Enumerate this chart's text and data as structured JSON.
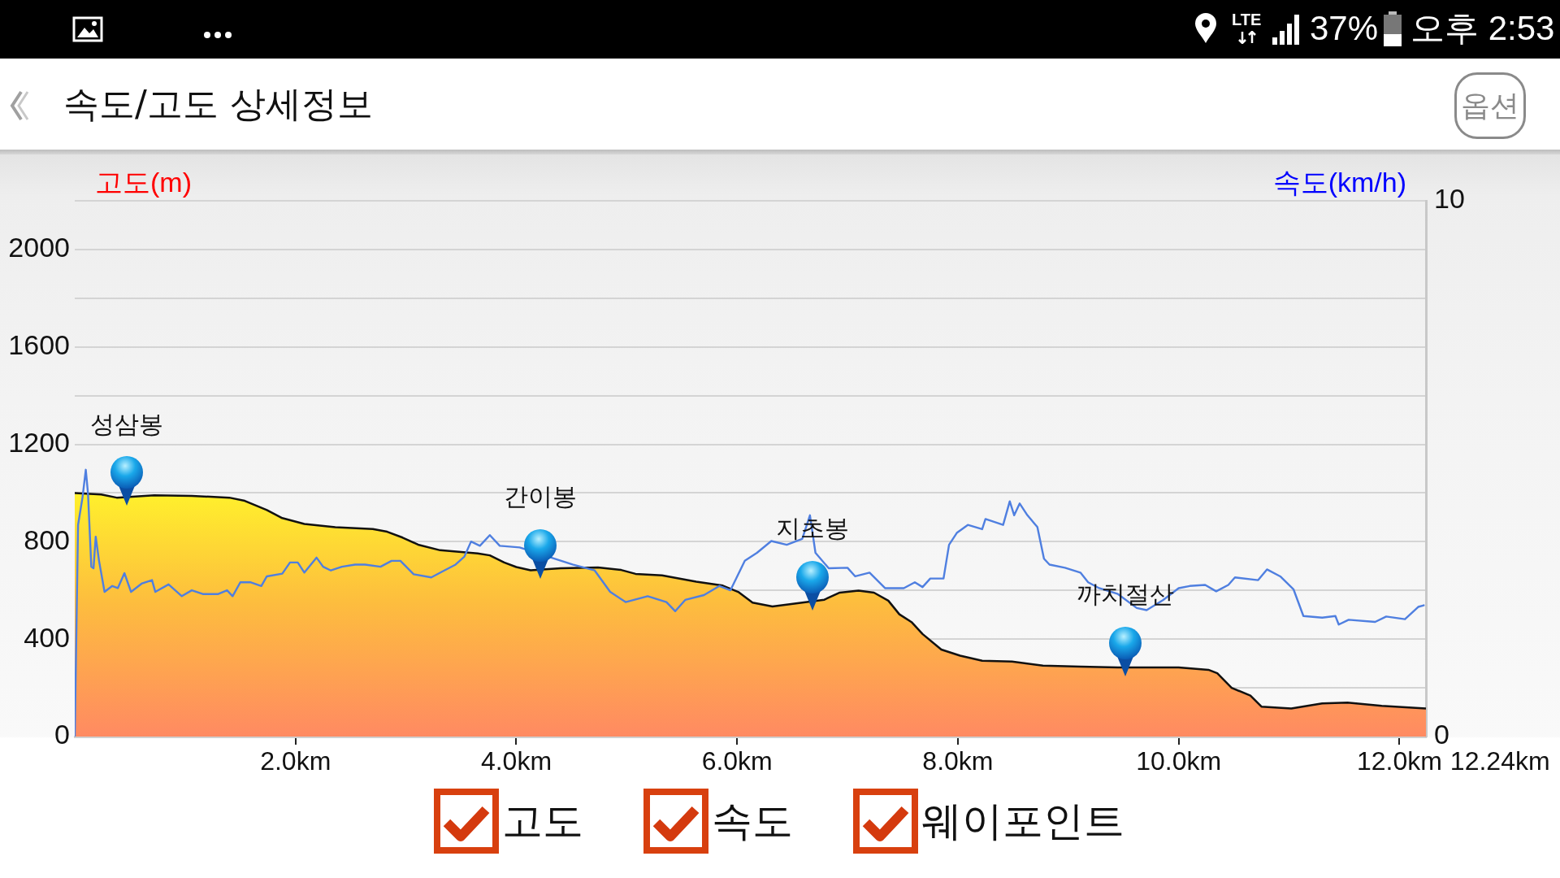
{
  "chart_data": {
    "type": "area",
    "title": "속도/고도 상세정보",
    "ylabel": "고도(m)",
    "y2label": "속도(km/h)",
    "xlim": [
      0,
      12.24
    ],
    "xticks": [
      {
        "value": 2,
        "label": "2.0km"
      },
      {
        "value": 4,
        "label": "4.0km"
      },
      {
        "value": 6,
        "label": "6.0km"
      },
      {
        "value": 8,
        "label": "8.0km"
      },
      {
        "value": 10,
        "label": "10.0km"
      },
      {
        "value": 12,
        "label": "12.0km"
      }
    ],
    "ylim": [
      0,
      2200
    ],
    "yticks": [
      0,
      {
        "value": 200,
        "label": null
      },
      400,
      {
        "value": 600,
        "label": null
      },
      800,
      {
        "value": 1000,
        "label": null
      },
      1200,
      {
        "value": 1400,
        "label": null
      },
      1600,
      {
        "value": 1800,
        "label": null
      },
      2000,
      {
        "value": 2200,
        "label": null
      }
    ],
    "y2lim": [
      0,
      10
    ],
    "y2ticks": [
      0,
      10
    ],
    "grid": "y",
    "marker": "none",
    "line_style": "solid",
    "series": [
      {
        "color": "#fdbd3e",
        "x": [
          0,
          0.24,
          0.38,
          0.72,
          1.06,
          1.4,
          1.54,
          1.74,
          1.88,
          2.08,
          2.36,
          2.7,
          2.83,
          2.97,
          3.11,
          3.31,
          3.65,
          3.76,
          3.89,
          4.0,
          4.13,
          4.4,
          4.74,
          4.95,
          5.08,
          5.32,
          5.63,
          5.87,
          6.01,
          6.14,
          6.32,
          6.79,
          6.93,
          7.1,
          7.24,
          7.37,
          7.47,
          7.58,
          7.68,
          7.85,
          8.02,
          8.22,
          8.49,
          8.77,
          9.11,
          9.45,
          10.0,
          10.27,
          10.35,
          10.48,
          10.65,
          10.75,
          11.02,
          11.3,
          11.53,
          11.84,
          12.24
        ],
        "values": [
          1000,
          994,
          981,
          991,
          988,
          981,
          968,
          930,
          897,
          873,
          860,
          852,
          841,
          817,
          788,
          765,
          752,
          744,
          715,
          696,
          683,
          691,
          694,
          684,
          668,
          662,
          636,
          620,
          594,
          550,
          534,
          562,
          591,
          599,
          591,
          558,
          502,
          470,
          421,
          357,
          332,
          311,
          308,
          291,
          287,
          284,
          284,
          274,
          260,
          200,
          168,
          123,
          115,
          136,
          139,
          126,
          115
        ]
      },
      {
        "type": "line",
        "axis": "y2",
        "color": "#4f7fe0",
        "x": [
          0,
          0.03,
          0.07,
          0.1,
          0.12,
          0.15,
          0.17,
          0.19,
          0.22,
          0.27,
          0.34,
          0.39,
          0.45,
          0.51,
          0.61,
          0.7,
          0.73,
          0.85,
          0.97,
          1.06,
          1.16,
          1.3,
          1.38,
          1.43,
          1.5,
          1.59,
          1.69,
          1.74,
          1.88,
          1.95,
          2.02,
          2.08,
          2.19,
          2.25,
          2.32,
          2.42,
          2.54,
          2.63,
          2.77,
          2.87,
          2.95,
          3.07,
          3.23,
          3.33,
          3.45,
          3.53,
          3.59,
          3.67,
          3.76,
          3.85,
          4.03,
          4.51,
          4.71,
          4.85,
          4.99,
          5.19,
          5.36,
          5.44,
          5.53,
          5.7,
          5.84,
          5.94,
          6.07,
          6.18,
          6.31,
          6.45,
          6.59,
          6.66,
          6.71,
          6.83,
          7.0,
          7.07,
          7.2,
          7.34,
          7.51,
          7.61,
          7.68,
          7.75,
          7.87,
          7.92,
          7.99,
          8.09,
          8.22,
          8.25,
          8.41,
          8.47,
          8.51,
          8.56,
          8.63,
          8.72,
          8.78,
          8.83,
          8.97,
          9.11,
          9.18,
          9.28,
          9.45,
          9.62,
          9.71,
          9.86,
          10.0,
          10.1,
          10.24,
          10.34,
          10.45,
          10.51,
          10.72,
          10.8,
          10.92,
          11.04,
          11.13,
          11.3,
          11.42,
          11.45,
          11.54,
          11.78,
          11.88,
          12.05,
          12.17,
          12.22
        ],
        "values": [
          0,
          3.95,
          4.46,
          4.98,
          4.54,
          3.17,
          3.14,
          3.73,
          3.28,
          2.7,
          2.81,
          2.77,
          3.05,
          2.7,
          2.86,
          2.92,
          2.7,
          2.84,
          2.62,
          2.73,
          2.66,
          2.66,
          2.73,
          2.62,
          2.88,
          2.88,
          2.81,
          2.99,
          3.04,
          3.25,
          3.25,
          3.06,
          3.34,
          3.17,
          3.1,
          3.17,
          3.21,
          3.21,
          3.17,
          3.28,
          3.28,
          3.03,
          2.97,
          3.08,
          3.21,
          3.36,
          3.64,
          3.56,
          3.76,
          3.56,
          3.53,
          3.21,
          3.1,
          2.7,
          2.51,
          2.62,
          2.51,
          2.34,
          2.55,
          2.64,
          2.81,
          2.73,
          3.28,
          3.43,
          3.65,
          3.58,
          3.69,
          4.13,
          3.43,
          3.14,
          3.15,
          2.99,
          3.06,
          2.77,
          2.77,
          2.88,
          2.79,
          2.95,
          2.95,
          3.58,
          3.8,
          3.95,
          3.87,
          4.06,
          3.95,
          4.39,
          4.13,
          4.35,
          4.13,
          3.91,
          3.32,
          3.21,
          3.15,
          3.06,
          2.88,
          2.77,
          2.66,
          2.4,
          2.36,
          2.55,
          2.77,
          2.81,
          2.83,
          2.71,
          2.83,
          2.97,
          2.92,
          3.12,
          2.99,
          2.75,
          2.25,
          2.22,
          2.25,
          2.09,
          2.18,
          2.14,
          2.24,
          2.19,
          2.42,
          2.45
        ]
      }
    ],
    "annotations": [
      "LTE",
      "37%",
      "오후 2:53",
      "옵션",
      "12.24km",
      "고도",
      "속도",
      "웨이포인트",
      {
        "text": "성삼봉",
        "x": 0.47,
        "y": 984
      },
      {
        "text": "간이봉",
        "x": 4.22,
        "y": 686
      },
      {
        "text": "지초봉",
        "x": 6.68,
        "y": 555
      },
      {
        "text": "까치절산",
        "x": 9.52,
        "y": 284
      }
    ]
  }
}
